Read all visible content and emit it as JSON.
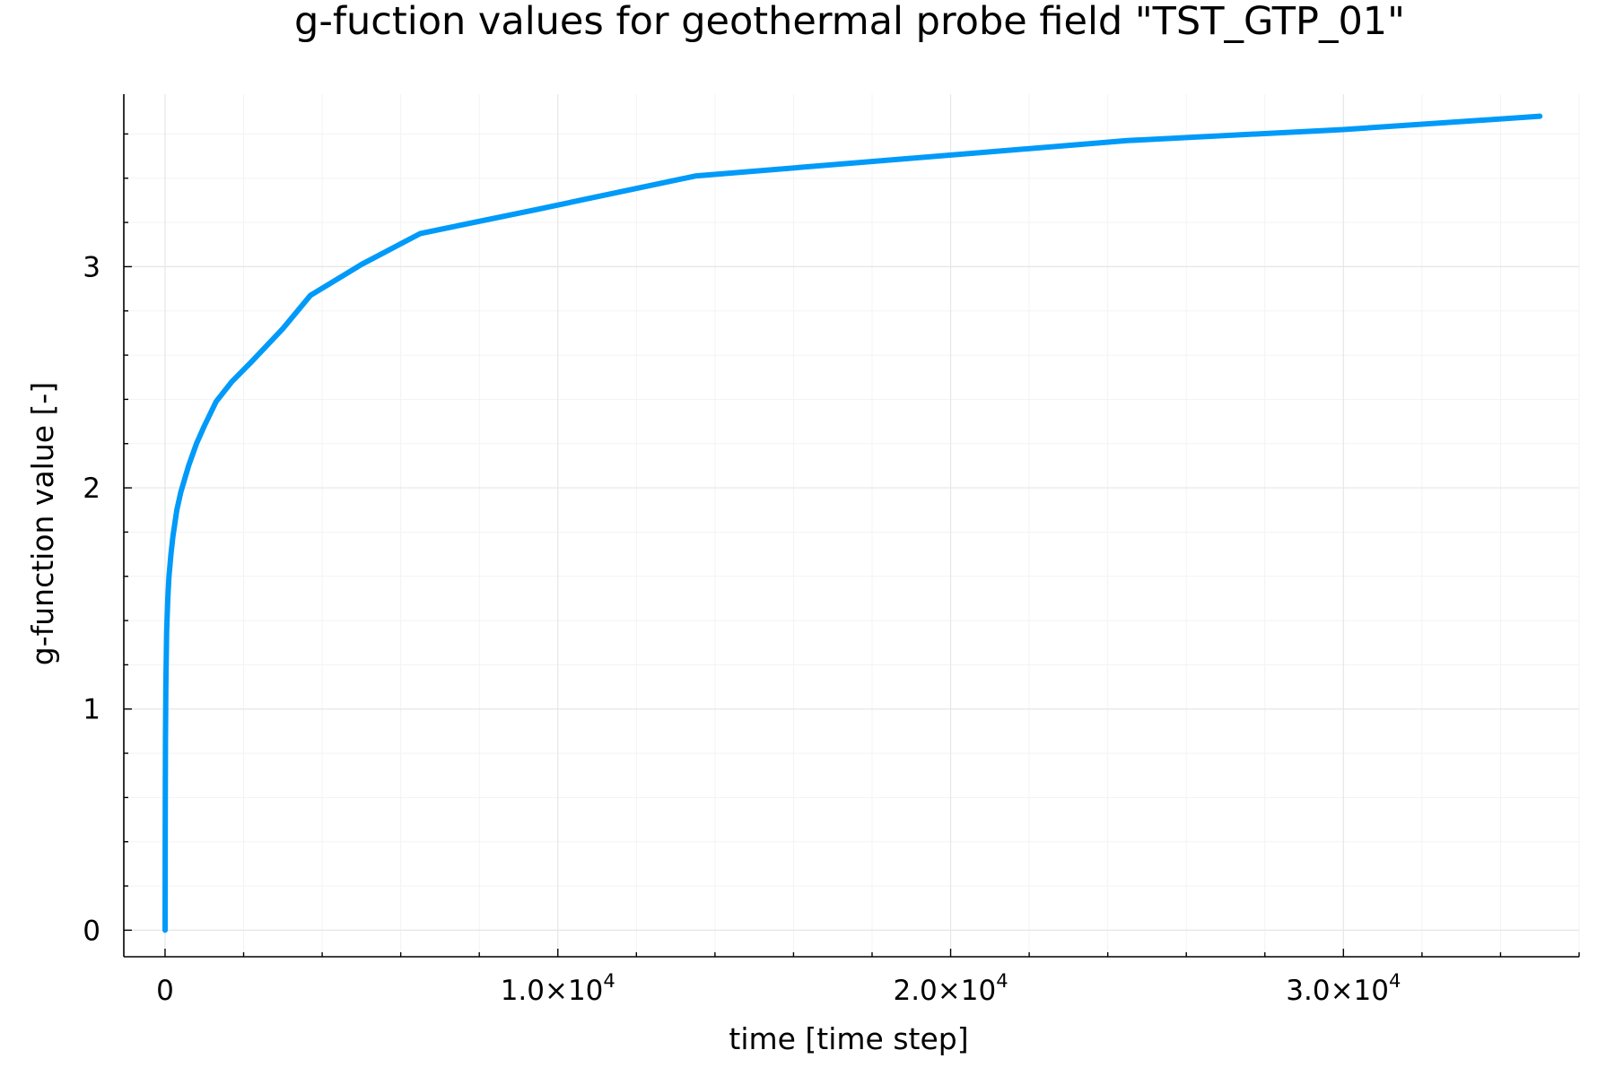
{
  "chart_data": {
    "type": "line",
    "title": "g-fuction values for geothermal probe field \"TST_GTP_01\"",
    "xlabel": "time [time step]",
    "ylabel": "g-function value [-]",
    "xlim": [
      -1050,
      36000
    ],
    "ylim": [
      -0.12,
      3.78
    ],
    "x_ticks": [
      {
        "value": 0,
        "mantissa": "0",
        "exponent": ""
      },
      {
        "value": 10000,
        "mantissa": "1.0×10",
        "exponent": "4"
      },
      {
        "value": 20000,
        "mantissa": "2.0×10",
        "exponent": "4"
      },
      {
        "value": 30000,
        "mantissa": "3.0×10",
        "exponent": "4"
      }
    ],
    "y_ticks": [
      {
        "value": 0,
        "label": "0"
      },
      {
        "value": 1,
        "label": "1"
      },
      {
        "value": 2,
        "label": "2"
      },
      {
        "value": 3,
        "label": "3"
      }
    ],
    "grid": true,
    "legend": "none",
    "series": [
      {
        "color": "#009af9",
        "x": [
          1,
          3,
          6,
          10,
          20,
          40,
          70,
          100,
          150,
          200,
          300,
          400,
          600,
          800,
          1000,
          1300,
          1700,
          2200,
          3000,
          3700,
          5000,
          6500,
          9500,
          13500,
          19000,
          24500,
          30000,
          35000
        ],
        "y": [
          0.0,
          0.3,
          0.6,
          0.85,
          1.1,
          1.35,
          1.5,
          1.6,
          1.7,
          1.78,
          1.9,
          1.98,
          2.1,
          2.2,
          2.28,
          2.39,
          2.48,
          2.57,
          2.72,
          2.87,
          3.01,
          3.15,
          3.26,
          3.41,
          3.49,
          3.57,
          3.62,
          3.68
        ]
      }
    ]
  }
}
